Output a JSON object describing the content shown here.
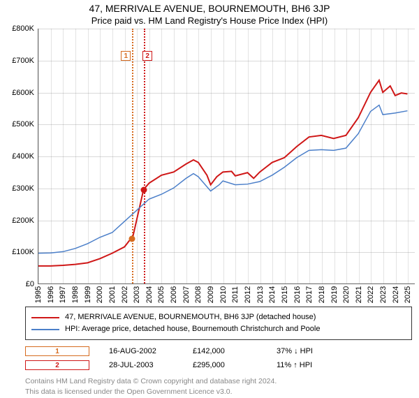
{
  "title": "47, MERRIVALE AVENUE, BOURNEMOUTH, BH6 3JP",
  "subtitle": "Price paid vs. HM Land Registry's House Price Index (HPI)",
  "chart": {
    "type": "line",
    "background_color": "#ffffff",
    "x_range": [
      1995,
      2025.6
    ],
    "y_range": [
      0,
      800000
    ],
    "y_ticks": [
      0,
      100000,
      200000,
      300000,
      400000,
      500000,
      600000,
      700000,
      800000
    ],
    "y_tick_labels": [
      "£0",
      "£100K",
      "£200K",
      "£300K",
      "£400K",
      "£500K",
      "£600K",
      "£700K",
      "£800K"
    ],
    "x_ticks": [
      1995,
      1996,
      1997,
      1998,
      1999,
      2000,
      2001,
      2002,
      2003,
      2004,
      2005,
      2006,
      2007,
      2008,
      2009,
      2010,
      2011,
      2012,
      2013,
      2014,
      2015,
      2016,
      2017,
      2018,
      2019,
      2020,
      2021,
      2022,
      2023,
      2024,
      2025
    ],
    "axis_fontsize": 11,
    "series": [
      {
        "name": "prop",
        "label": "47, MERRIVALE AVENUE, BOURNEMOUTH, BH6 3JP (detached house)",
        "color": "#cf1717",
        "width": 2,
        "points": [
          [
            1995,
            55000
          ],
          [
            1996,
            55000
          ],
          [
            1997,
            57000
          ],
          [
            1998,
            60000
          ],
          [
            1999,
            65000
          ],
          [
            2000,
            78000
          ],
          [
            2001,
            95000
          ],
          [
            2002,
            115000
          ],
          [
            2002.55,
            142000
          ],
          [
            2002.65,
            142000
          ],
          [
            2003.55,
            295000
          ],
          [
            2004,
            315000
          ],
          [
            2005,
            340000
          ],
          [
            2006,
            350000
          ],
          [
            2007,
            375000
          ],
          [
            2007.6,
            388000
          ],
          [
            2008,
            380000
          ],
          [
            2008.7,
            340000
          ],
          [
            2009,
            310000
          ],
          [
            2009.5,
            335000
          ],
          [
            2010,
            350000
          ],
          [
            2010.7,
            352000
          ],
          [
            2011,
            338000
          ],
          [
            2012,
            348000
          ],
          [
            2012.5,
            330000
          ],
          [
            2013,
            350000
          ],
          [
            2014,
            380000
          ],
          [
            2015,
            395000
          ],
          [
            2016,
            430000
          ],
          [
            2017,
            460000
          ],
          [
            2018,
            465000
          ],
          [
            2019,
            455000
          ],
          [
            2020,
            465000
          ],
          [
            2021,
            520000
          ],
          [
            2022,
            600000
          ],
          [
            2022.7,
            638000
          ],
          [
            2023,
            600000
          ],
          [
            2023.6,
            620000
          ],
          [
            2024,
            590000
          ],
          [
            2024.5,
            598000
          ],
          [
            2025,
            595000
          ]
        ]
      },
      {
        "name": "hpi",
        "label": "HPI: Average price, detached house, Bournemouth Christchurch and Poole",
        "color": "#4b7fc9",
        "width": 1.5,
        "points": [
          [
            1995,
            95000
          ],
          [
            1996,
            96000
          ],
          [
            1997,
            100000
          ],
          [
            1998,
            110000
          ],
          [
            1999,
            125000
          ],
          [
            2000,
            145000
          ],
          [
            2001,
            160000
          ],
          [
            2002,
            195000
          ],
          [
            2003,
            230000
          ],
          [
            2004,
            265000
          ],
          [
            2005,
            280000
          ],
          [
            2006,
            300000
          ],
          [
            2007,
            330000
          ],
          [
            2007.6,
            345000
          ],
          [
            2008,
            335000
          ],
          [
            2009,
            290000
          ],
          [
            2009.7,
            310000
          ],
          [
            2010,
            322000
          ],
          [
            2011,
            310000
          ],
          [
            2012,
            312000
          ],
          [
            2013,
            320000
          ],
          [
            2014,
            340000
          ],
          [
            2015,
            365000
          ],
          [
            2016,
            395000
          ],
          [
            2017,
            418000
          ],
          [
            2018,
            420000
          ],
          [
            2019,
            418000
          ],
          [
            2020,
            425000
          ],
          [
            2021,
            470000
          ],
          [
            2022,
            540000
          ],
          [
            2022.7,
            560000
          ],
          [
            2023,
            530000
          ],
          [
            2024,
            535000
          ],
          [
            2025,
            542000
          ]
        ]
      }
    ],
    "vlines": [
      {
        "x": 2002.62,
        "color": "#d66b1f"
      },
      {
        "x": 2003.57,
        "color": "#cf1717"
      }
    ],
    "markers": [
      {
        "num": "1",
        "x": 2002.62,
        "price": 142000,
        "color": "#d66b1f",
        "label_x": 2002.1
      },
      {
        "num": "2",
        "x": 2003.57,
        "price": 295000,
        "color": "#cf1717",
        "label_x": 2003.85
      }
    ]
  },
  "sales": [
    {
      "num": "1",
      "date": "16-AUG-2002",
      "price": "£142,000",
      "delta": "37% ↓ HPI",
      "color": "#d66b1f"
    },
    {
      "num": "2",
      "date": "28-JUL-2003",
      "price": "£295,000",
      "delta": "11% ↑ HPI",
      "color": "#cf1717"
    }
  ],
  "footer": {
    "l1": "Contains HM Land Registry data © Crown copyright and database right 2024.",
    "l2": "This data is licensed under the Open Government Licence v3.0."
  }
}
